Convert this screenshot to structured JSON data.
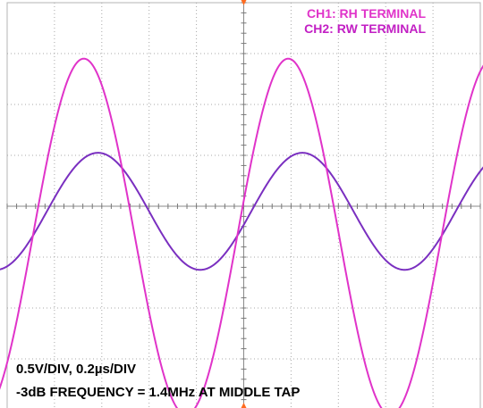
{
  "chart_data": {
    "type": "line",
    "title": "",
    "legend": {
      "placement": "top-right",
      "entries": [
        {
          "label": "CH1: RH TERMINAL",
          "color": "#e033c9"
        },
        {
          "label": "CH2: RW TERMINAL",
          "color": "#7a2fc0"
        }
      ]
    },
    "annotations": [
      "0.5V/DIV, 0.2µs/DIV",
      "-3dB FREQUENCY = 1.4MHz AT MIDDLE TAP"
    ],
    "settings": {
      "volts_per_div": 0.5,
      "time_per_div_us": 0.2,
      "frequency_MHz": 1.4
    },
    "grid": true,
    "xlim_div": [
      0,
      10
    ],
    "ylim_div": [
      -4,
      4
    ],
    "xlabel": "",
    "ylabel": "",
    "series": [
      {
        "name": "CH1: RH TERMINAL",
        "color": "#e033c9",
        "amplitude_div": 3.5,
        "offset_div": -0.6,
        "period_div": 4.32,
        "peak_time_div": [
          1.62,
          5.94,
          10.26
        ]
      },
      {
        "name": "CH2: RW TERMINAL",
        "color": "#7a2fc0",
        "amplitude_div": 1.15,
        "offset_div": -0.1,
        "period_div": 4.32,
        "peak_time_div": [
          1.92,
          6.24,
          10.56
        ]
      }
    ]
  }
}
